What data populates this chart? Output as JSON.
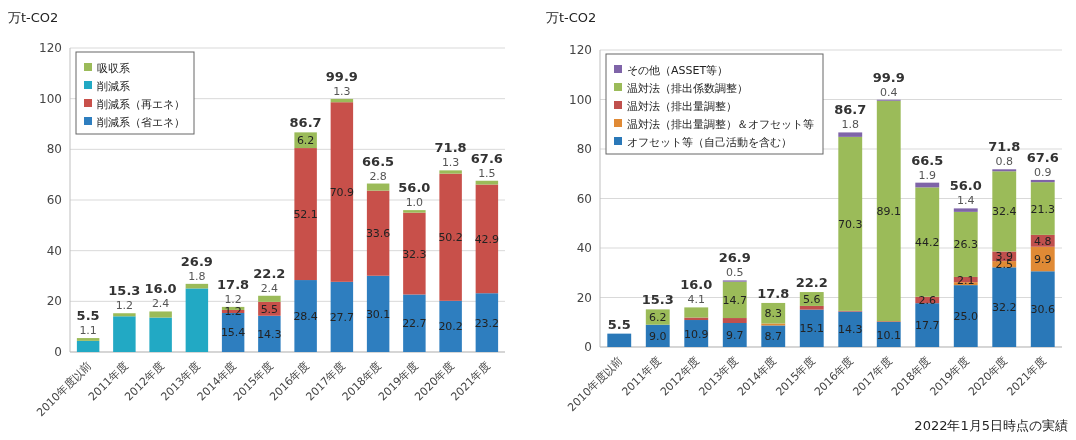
{
  "chart_data": [
    {
      "type": "bar",
      "stacked": true,
      "ylabel": "万t-CO2",
      "categories": [
        "2010年度以前",
        "2011年度",
        "2012年度",
        "2013年度",
        "2014年度",
        "2015年度",
        "2016年度",
        "2017年度",
        "2018年度",
        "2019年度",
        "2020年度",
        "2021年度"
      ],
      "ylim": [
        0,
        120
      ],
      "yticks": [
        0,
        20,
        40,
        60,
        80,
        100,
        120
      ],
      "grid": "y",
      "legend": "top left",
      "series": [
        {
          "name": "削減系（省エネ）",
          "color": "#2e7ebf",
          "values": [
            null,
            null,
            null,
            null,
            15.4,
            14.3,
            28.4,
            27.7,
            30.1,
            22.7,
            20.2,
            23.2
          ],
          "value_labels": [
            null,
            null,
            null,
            null,
            "15.4",
            "14.3",
            "28.4",
            "27.7",
            "30.1",
            "22.7",
            "20.2",
            "23.2"
          ]
        },
        {
          "name": "削減系（再エネ）",
          "color": "#c8504a",
          "values": [
            null,
            null,
            null,
            null,
            1.2,
            5.5,
            52.1,
            70.9,
            33.6,
            32.3,
            50.2,
            42.9
          ],
          "value_labels": [
            null,
            null,
            null,
            null,
            "1.2",
            "5.5",
            "52.1",
            "70.9",
            "33.6",
            "32.3",
            "50.2",
            "42.9"
          ]
        },
        {
          "name": "削減系",
          "color": "#22a9c4",
          "values": [
            4.4,
            14.1,
            13.6,
            25.1,
            null,
            null,
            null,
            null,
            null,
            null,
            null,
            null
          ]
        },
        {
          "name": "吸収系",
          "color": "#9bbb59",
          "values": [
            1.1,
            1.2,
            2.4,
            1.8,
            1.2,
            2.4,
            6.2,
            1.3,
            2.8,
            1.0,
            1.3,
            1.5
          ],
          "value_labels": [
            "1.1",
            "1.2",
            "2.4",
            "1.8",
            "1.2",
            "2.4",
            "6.2",
            "1.3",
            "2.8",
            "1.0",
            "1.3",
            "1.5"
          ]
        }
      ],
      "totals": [
        "5.5",
        "15.3",
        "16.0",
        "26.9",
        "17.8",
        "22.2",
        "86.7",
        "99.9",
        "66.5",
        "56.0",
        "71.8",
        "67.6"
      ]
    },
    {
      "type": "bar",
      "stacked": true,
      "ylabel": "万t-CO2",
      "categories": [
        "2010年度以前",
        "2011年度",
        "2012年度",
        "2013年度",
        "2014年度",
        "2015年度",
        "2016年度",
        "2017年度",
        "2018年度",
        "2019年度",
        "2020年度",
        "2021年度"
      ],
      "ylim": [
        0,
        120
      ],
      "yticks": [
        0,
        20,
        40,
        60,
        80,
        100,
        120
      ],
      "grid": "y",
      "legend": "top left",
      "series": [
        {
          "name": "オフセット等（自己活動を含む）",
          "color": "#2a78b8",
          "values": [
            5.4,
            9.0,
            10.9,
            9.7,
            8.7,
            15.1,
            14.3,
            10.1,
            17.7,
            25.0,
            32.2,
            30.6
          ],
          "value_labels": [
            null,
            "9.0",
            "10.9",
            "9.7",
            "8.7",
            "15.1",
            "14.3",
            "10.1",
            "17.7",
            "25.0",
            "32.2",
            "30.6"
          ]
        },
        {
          "name": "温対法（排出量調整）＆オフセット等",
          "color": "#e08a35",
          "values": [
            0.0,
            0.0,
            0.0,
            0.0,
            0.8,
            0.0,
            0.0,
            0.0,
            null,
            1.2,
            2.5,
            9.9
          ],
          "value_labels": [
            null,
            null,
            null,
            null,
            null,
            null,
            null,
            null,
            null,
            null,
            "2.5",
            "9.9"
          ]
        },
        {
          "name": "温対法（排出量調整）",
          "color": "#c0504d",
          "values": [
            0.0,
            0.0,
            1.0,
            2.0,
            0.0,
            1.5,
            0.3,
            0.3,
            2.6,
            2.1,
            3.9,
            4.8
          ],
          "value_labels": [
            null,
            null,
            null,
            null,
            null,
            null,
            null,
            null,
            "2.6",
            "2.1",
            "3.9",
            "4.8"
          ]
        },
        {
          "name": "温対法（排出係数調整）",
          "color": "#9bbb59",
          "values": [
            null,
            6.2,
            4.1,
            14.7,
            8.3,
            5.6,
            70.3,
            89.1,
            44.2,
            26.3,
            32.4,
            21.3
          ],
          "value_labels": [
            null,
            "6.2",
            "4.1",
            "14.7",
            "8.3",
            "5.6",
            "70.3",
            "89.1",
            "44.2",
            "26.3",
            "32.4",
            "21.3"
          ]
        },
        {
          "name": "その他（ASSET等）",
          "color": "#7f64a8",
          "values": [
            0.0,
            null,
            0.0,
            0.5,
            0.0,
            0.0,
            1.8,
            0.4,
            1.9,
            1.4,
            0.8,
            0.9
          ],
          "value_labels": [
            null,
            null,
            null,
            "0.5",
            null,
            null,
            "1.8",
            "0.4",
            "1.9",
            "1.4",
            "0.8",
            "0.9"
          ]
        }
      ],
      "totals": [
        "5.5",
        "15.3",
        "16.0",
        "26.9",
        "17.8",
        "22.2",
        "86.7",
        "99.9",
        "66.5",
        "56.0",
        "71.8",
        "67.6"
      ],
      "annotations": [
        "2022年1月5日時点の実績"
      ]
    }
  ]
}
